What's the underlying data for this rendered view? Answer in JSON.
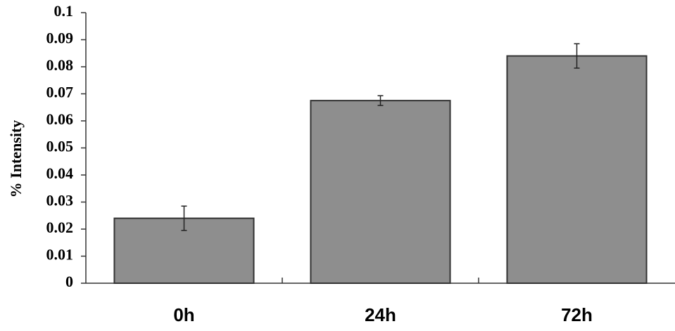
{
  "chart_data": {
    "type": "bar",
    "y_label": "% Intensity",
    "categories": [
      "0h",
      "24h",
      "72h"
    ],
    "values": [
      0.024,
      0.0675,
      0.084
    ],
    "errors": [
      0.0045,
      0.0018,
      0.0045
    ],
    "color": "#8e8e8e",
    "ylim": [
      0,
      0.1
    ],
    "yticks": [
      0,
      0.01,
      0.02,
      0.03,
      0.04,
      0.05,
      0.06,
      0.07,
      0.08,
      0.09,
      0.1
    ]
  }
}
